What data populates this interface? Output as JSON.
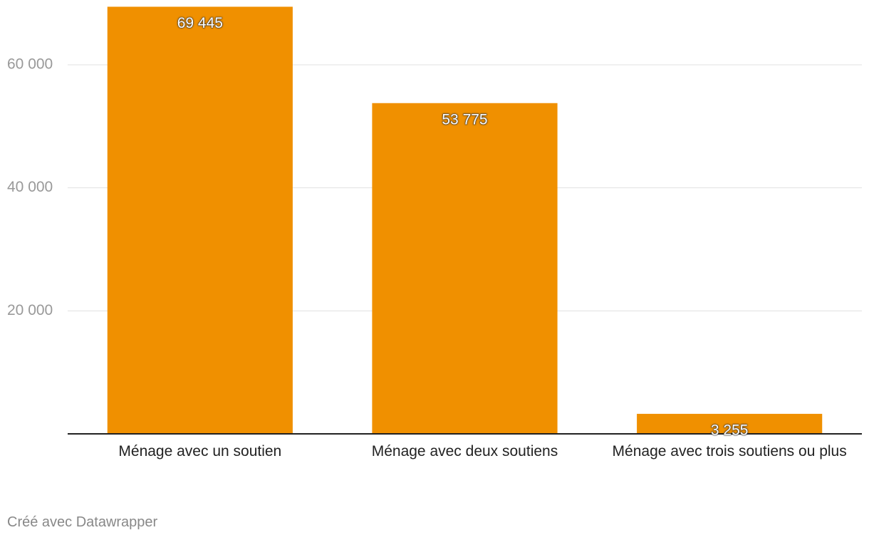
{
  "chart_data": {
    "type": "bar",
    "categories": [
      "Ménage avec un soutien",
      "Ménage avec deux soutiens",
      "Ménage avec trois soutiens ou plus"
    ],
    "values": [
      69445,
      53775,
      3255
    ],
    "value_labels": [
      "69 445",
      "53 775",
      "3 255"
    ],
    "color": "#f09000",
    "ylim": [
      0,
      70000
    ],
    "yticks": [
      {
        "value": 20000,
        "label": "20 000"
      },
      {
        "value": 40000,
        "label": "40 000"
      },
      {
        "value": 60000,
        "label": "60 000"
      }
    ],
    "grid": true,
    "footer": "Créé avec Datawrapper"
  }
}
